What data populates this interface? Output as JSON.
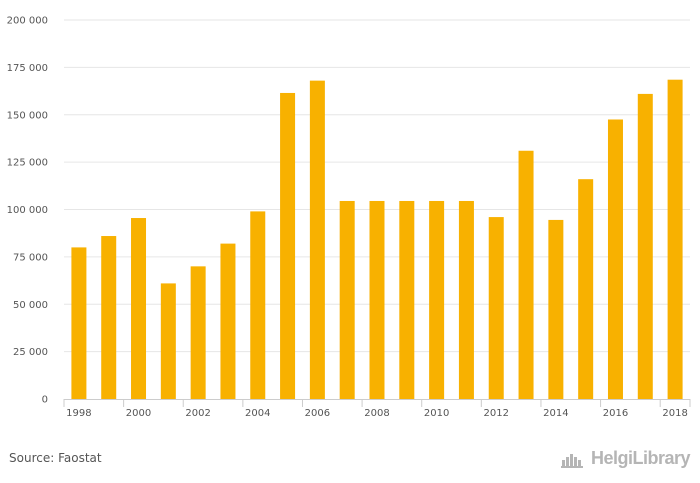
{
  "chart_data": {
    "type": "bar",
    "categories": [
      "1998",
      "1999",
      "2000",
      "2001",
      "2002",
      "2003",
      "2004",
      "2005",
      "2006",
      "2007",
      "2008",
      "2009",
      "2010",
      "2011",
      "2012",
      "2013",
      "2014",
      "2015",
      "2016",
      "2017",
      "2018"
    ],
    "x_tick_labels": [
      "1998",
      "2000",
      "2002",
      "2004",
      "2006",
      "2008",
      "2010",
      "2012",
      "2014",
      "2016",
      "2018"
    ],
    "values": [
      80000,
      86000,
      95500,
      61000,
      70000,
      82000,
      99000,
      161500,
      168000,
      104500,
      104500,
      104500,
      104500,
      104500,
      96000,
      131000,
      94500,
      116000,
      147500,
      161000,
      168500
    ],
    "y_ticks": [
      "0",
      "25 000",
      "50 000",
      "75 000",
      "100 000",
      "125 000",
      "150 000",
      "175 000",
      "200 000"
    ],
    "ylim": [
      0,
      200000
    ],
    "ystep": 25000,
    "grid": true,
    "colors": {
      "bar": "#f8b100",
      "grid": "#e6e6e6",
      "axis": "#cccccc"
    }
  },
  "footer": {
    "source": "Source: Faostat",
    "brand": "HelgiLibrary",
    "brand_icon": "helgi-library-logo-icon"
  }
}
